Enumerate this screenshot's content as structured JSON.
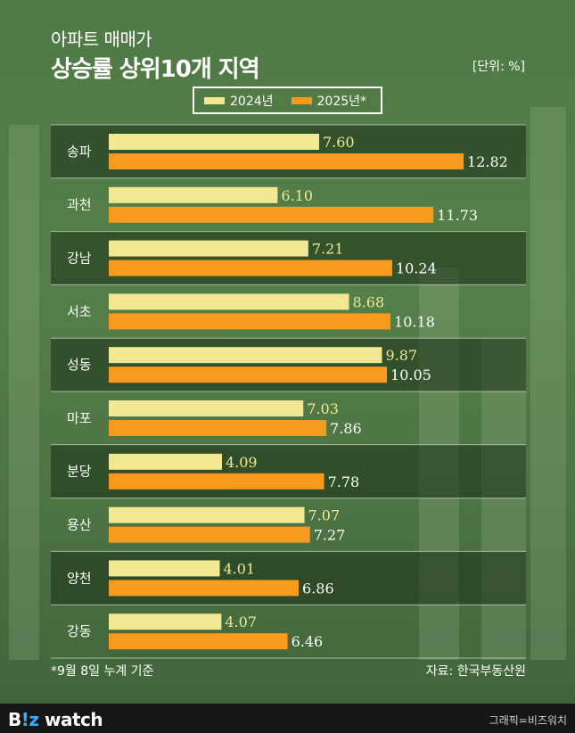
{
  "header": {
    "title_line1": "아파트 매매가",
    "title_line2": "상승률 상위10개 지역",
    "unit": "[단위: %]"
  },
  "colors": {
    "series_2024": "#f2e894",
    "series_2025": "#f79a1e",
    "label_2024": "#f2e894",
    "label_2025": "#ffffff"
  },
  "chart_data": {
    "type": "bar",
    "orientation": "horizontal",
    "title": "상승률 상위10개 지역",
    "unit": "%",
    "categories": [
      "송파",
      "과천",
      "강남",
      "서초",
      "성동",
      "마포",
      "분당",
      "용산",
      "양천",
      "강동"
    ],
    "series": [
      {
        "name": "2024년",
        "values": [
          7.6,
          6.1,
          7.21,
          8.68,
          9.87,
          7.03,
          4.09,
          7.07,
          4.01,
          4.07
        ]
      },
      {
        "name": "2025년*",
        "values": [
          12.82,
          11.73,
          10.24,
          10.18,
          10.05,
          7.86,
          7.78,
          7.27,
          6.86,
          6.46
        ]
      }
    ],
    "legend": "top",
    "grid": false
  },
  "footnote": "*9월 8일 누계 기준",
  "source": "자료: 한국부동산원",
  "footer": {
    "logo_prefix": "B",
    "logo_mark": "!z",
    "logo_suffix": " watch",
    "credit": "그래픽=비즈워치"
  }
}
